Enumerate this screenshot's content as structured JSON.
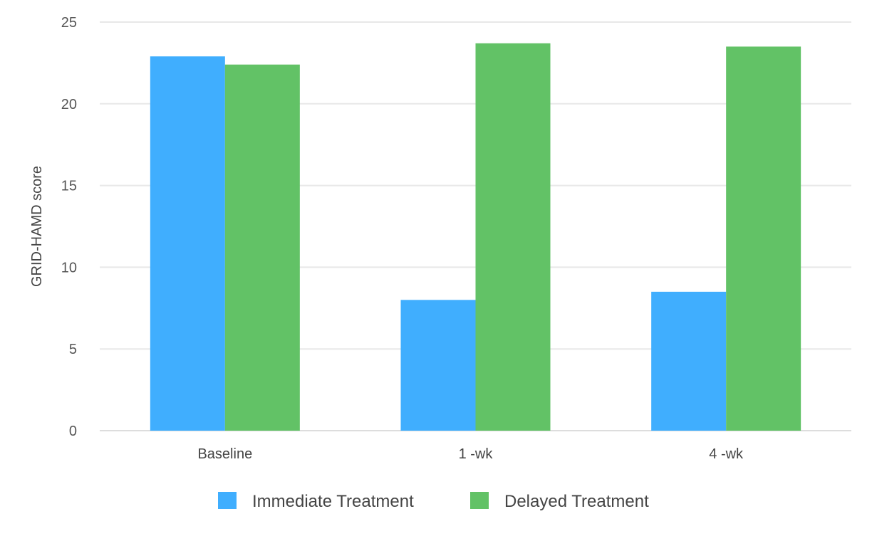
{
  "chart_data": {
    "type": "bar",
    "title": "",
    "xlabel": "",
    "ylabel": "GRID-HAMD score",
    "ylim": [
      0,
      25
    ],
    "yticks": [
      0,
      5,
      10,
      15,
      20,
      25
    ],
    "categories": [
      "Baseline",
      "1 -wk",
      "4 -wk"
    ],
    "series": [
      {
        "name": "Immediate Treatment",
        "color": "#40aefe",
        "values": [
          22.9,
          8.0,
          8.5
        ]
      },
      {
        "name": "Delayed Treatment",
        "color": "#62c266",
        "values": [
          22.4,
          23.7,
          23.5
        ]
      }
    ],
    "grid": true,
    "legend": "bottom"
  }
}
